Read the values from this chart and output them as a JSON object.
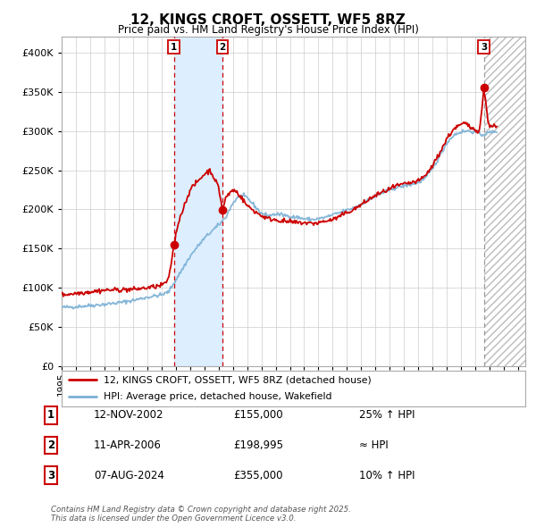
{
  "title": "12, KINGS CROFT, OSSETT, WF5 8RZ",
  "subtitle": "Price paid vs. HM Land Registry's House Price Index (HPI)",
  "legend_line1": "12, KINGS CROFT, OSSETT, WF5 8RZ (detached house)",
  "legend_line2": "HPI: Average price, detached house, Wakefield",
  "table_rows": [
    {
      "num": "1",
      "date": "12-NOV-2002",
      "price": "£155,000",
      "change": "25% ↑ HPI"
    },
    {
      "num": "2",
      "date": "11-APR-2006",
      "price": "£198,995",
      "change": "≈ HPI"
    },
    {
      "num": "3",
      "date": "07-AUG-2024",
      "price": "£355,000",
      "change": "10% ↑ HPI"
    }
  ],
  "footer": "Contains HM Land Registry data © Crown copyright and database right 2025.\nThis data is licensed under the Open Government Licence v3.0.",
  "hpi_color": "#7ab0d4",
  "price_color": "#cc0000",
  "marker_color": "#cc0000",
  "bg_color": "#ffffff",
  "grid_color": "#cccccc",
  "shade_color": "#ddeeff",
  "ylim": [
    0,
    420000
  ],
  "yticks": [
    0,
    50000,
    100000,
    150000,
    200000,
    250000,
    300000,
    350000,
    400000
  ],
  "sale1_year": 2002.87,
  "sale1_price": 155000,
  "sale2_year": 2006.28,
  "sale2_price": 198995,
  "sale3_year": 2024.6,
  "sale3_price": 355000,
  "xmin": 1995,
  "xmax": 2027.5
}
